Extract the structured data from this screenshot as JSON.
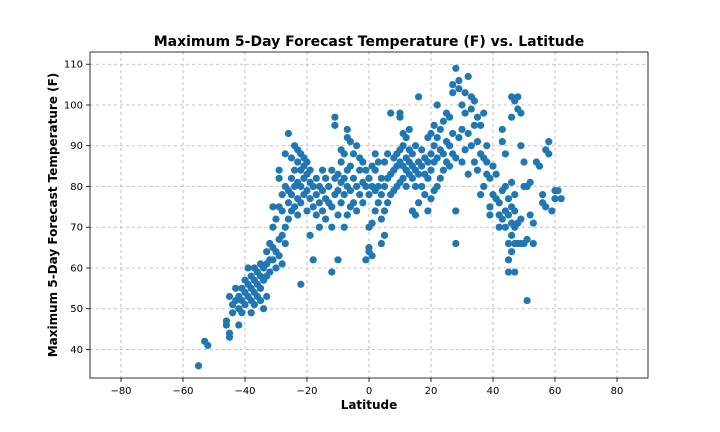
{
  "chart_data": {
    "type": "scatter",
    "title": "Maximum 5-Day Forecast Temperature (F) vs. Latitude",
    "xlabel": "Latitude",
    "ylabel": "Maximum 5-Day Forecast Temperature (F)",
    "xlim": [
      -90,
      90
    ],
    "ylim": [
      33,
      113
    ],
    "xticks": [
      -80,
      -60,
      -40,
      -20,
      0,
      20,
      40,
      60,
      80
    ],
    "yticks": [
      40,
      50,
      60,
      70,
      80,
      90,
      100,
      110
    ],
    "grid": true,
    "marker_color": "#1f77b4",
    "points": [
      [
        -55,
        36
      ],
      [
        -53,
        42
      ],
      [
        -52,
        41
      ],
      [
        -46,
        47
      ],
      [
        -46,
        46
      ],
      [
        -45,
        43
      ],
      [
        -45,
        44
      ],
      [
        -45,
        53
      ],
      [
        -44,
        49
      ],
      [
        -44,
        51
      ],
      [
        -43,
        55
      ],
      [
        -43,
        52
      ],
      [
        -42,
        53
      ],
      [
        -42,
        50
      ],
      [
        -42,
        46
      ],
      [
        -41,
        55
      ],
      [
        -41,
        52
      ],
      [
        -41,
        49
      ],
      [
        -40,
        54
      ],
      [
        -40,
        51
      ],
      [
        -40,
        57
      ],
      [
        -39,
        60
      ],
      [
        -39,
        56
      ],
      [
        -39,
        53
      ],
      [
        -38,
        58
      ],
      [
        -38,
        55
      ],
      [
        -38,
        52
      ],
      [
        -38,
        49
      ],
      [
        -37,
        60
      ],
      [
        -37,
        57
      ],
      [
        -37,
        54
      ],
      [
        -37,
        51
      ],
      [
        -36,
        59
      ],
      [
        -36,
        56
      ],
      [
        -36,
        53
      ],
      [
        -35,
        61
      ],
      [
        -35,
        58
      ],
      [
        -35,
        55
      ],
      [
        -35,
        52
      ],
      [
        -34,
        60
      ],
      [
        -34,
        57
      ],
      [
        -34,
        50
      ],
      [
        -33,
        64
      ],
      [
        -33,
        61
      ],
      [
        -33,
        58
      ],
      [
        -33,
        53
      ],
      [
        -32,
        66
      ],
      [
        -32,
        62
      ],
      [
        -32,
        59
      ],
      [
        -31,
        65
      ],
      [
        -31,
        62
      ],
      [
        -31,
        75
      ],
      [
        -31,
        70
      ],
      [
        -30,
        64
      ],
      [
        -30,
        60
      ],
      [
        -30,
        72
      ],
      [
        -29,
        67
      ],
      [
        -29,
        63
      ],
      [
        -29,
        75
      ],
      [
        -29,
        82
      ],
      [
        -29,
        84
      ],
      [
        -28,
        68
      ],
      [
        -28,
        61
      ],
      [
        -28,
        74
      ],
      [
        -28,
        78
      ],
      [
        -27,
        70
      ],
      [
        -27,
        66
      ],
      [
        -27,
        80
      ],
      [
        -27,
        88
      ],
      [
        -26,
        72
      ],
      [
        -26,
        76
      ],
      [
        -26,
        79
      ],
      [
        -26,
        93
      ],
      [
        -25,
        74
      ],
      [
        -25,
        78
      ],
      [
        -25,
        82
      ],
      [
        -25,
        87
      ],
      [
        -24,
        75
      ],
      [
        -24,
        80
      ],
      [
        -24,
        84
      ],
      [
        -24,
        90
      ],
      [
        -23,
        73
      ],
      [
        -23,
        77
      ],
      [
        -23,
        81
      ],
      [
        -23,
        86
      ],
      [
        -23,
        89
      ],
      [
        -22,
        56
      ],
      [
        -22,
        76
      ],
      [
        -22,
        80
      ],
      [
        -22,
        84
      ],
      [
        -22,
        88
      ],
      [
        -21,
        78
      ],
      [
        -21,
        82
      ],
      [
        -21,
        85
      ],
      [
        -21,
        87
      ],
      [
        -20,
        74
      ],
      [
        -20,
        79
      ],
      [
        -20,
        83
      ],
      [
        -20,
        86
      ],
      [
        -19,
        68
      ],
      [
        -19,
        77
      ],
      [
        -19,
        81
      ],
      [
        -19,
        84
      ],
      [
        -18,
        62
      ],
      [
        -18,
        75
      ],
      [
        -18,
        80
      ],
      [
        -17,
        73
      ],
      [
        -17,
        78
      ],
      [
        -17,
        82
      ],
      [
        -16,
        70
      ],
      [
        -16,
        76
      ],
      [
        -16,
        80
      ],
      [
        -15,
        74
      ],
      [
        -15,
        79
      ],
      [
        -15,
        84
      ],
      [
        -14,
        72
      ],
      [
        -14,
        77
      ],
      [
        -14,
        82
      ],
      [
        -13,
        76
      ],
      [
        -13,
        80
      ],
      [
        -12,
        59
      ],
      [
        -12,
        70
      ],
      [
        -12,
        75
      ],
      [
        -12,
        84
      ],
      [
        -11,
        97
      ],
      [
        -11,
        95
      ],
      [
        -11,
        78
      ],
      [
        -11,
        82
      ],
      [
        -10,
        62
      ],
      [
        -10,
        73
      ],
      [
        -10,
        79
      ],
      [
        -10,
        83
      ],
      [
        -9,
        76
      ],
      [
        -9,
        81
      ],
      [
        -9,
        86
      ],
      [
        -9,
        89
      ],
      [
        -8,
        70
      ],
      [
        -8,
        78
      ],
      [
        -8,
        82
      ],
      [
        -8,
        88
      ],
      [
        -7,
        73
      ],
      [
        -7,
        80
      ],
      [
        -7,
        84
      ],
      [
        -7,
        92
      ],
      [
        -7,
        94
      ],
      [
        -6,
        75
      ],
      [
        -6,
        79
      ],
      [
        -6,
        85
      ],
      [
        -6,
        91
      ],
      [
        -5,
        76
      ],
      [
        -5,
        82
      ],
      [
        -5,
        88
      ],
      [
        -4,
        74
      ],
      [
        -4,
        80
      ],
      [
        -4,
        90
      ],
      [
        -3,
        78
      ],
      [
        -3,
        84
      ],
      [
        -3,
        87
      ],
      [
        -2,
        76
      ],
      [
        -2,
        81
      ],
      [
        -2,
        86
      ],
      [
        -1,
        62
      ],
      [
        -1,
        80
      ],
      [
        -1,
        84
      ],
      [
        0,
        65
      ],
      [
        0,
        64
      ],
      [
        0,
        70
      ],
      [
        0,
        78
      ],
      [
        0,
        82
      ],
      [
        1,
        63
      ],
      [
        1,
        71
      ],
      [
        1,
        80
      ],
      [
        1,
        85
      ],
      [
        2,
        74
      ],
      [
        2,
        79
      ],
      [
        2,
        84
      ],
      [
        2,
        88
      ],
      [
        3,
        76
      ],
      [
        3,
        80
      ],
      [
        3,
        86
      ],
      [
        4,
        66
      ],
      [
        4,
        72
      ],
      [
        4,
        78
      ],
      [
        4,
        82
      ],
      [
        5,
        68
      ],
      [
        5,
        74
      ],
      [
        5,
        80
      ],
      [
        5,
        86
      ],
      [
        6,
        76
      ],
      [
        6,
        82
      ],
      [
        6,
        88
      ],
      [
        7,
        78
      ],
      [
        7,
        83
      ],
      [
        7,
        98
      ],
      [
        8,
        79
      ],
      [
        8,
        84
      ],
      [
        8,
        87
      ],
      [
        9,
        80
      ],
      [
        9,
        85
      ],
      [
        9,
        88
      ],
      [
        10,
        81
      ],
      [
        10,
        86
      ],
      [
        10,
        89
      ],
      [
        10,
        97
      ],
      [
        10,
        98
      ],
      [
        11,
        82
      ],
      [
        11,
        85
      ],
      [
        11,
        90
      ],
      [
        11,
        93
      ],
      [
        12,
        80
      ],
      [
        12,
        84
      ],
      [
        12,
        87
      ],
      [
        12,
        92
      ],
      [
        13,
        83
      ],
      [
        13,
        86
      ],
      [
        13,
        89
      ],
      [
        13,
        94
      ],
      [
        14,
        74
      ],
      [
        14,
        82
      ],
      [
        14,
        85
      ],
      [
        14,
        88
      ],
      [
        15,
        73
      ],
      [
        15,
        80
      ],
      [
        15,
        84
      ],
      [
        15,
        90
      ],
      [
        16,
        76
      ],
      [
        16,
        83
      ],
      [
        16,
        86
      ],
      [
        16,
        102
      ],
      [
        17,
        80
      ],
      [
        17,
        85
      ],
      [
        17,
        89
      ],
      [
        18,
        78
      ],
      [
        18,
        83
      ],
      [
        18,
        87
      ],
      [
        19,
        74
      ],
      [
        19,
        82
      ],
      [
        19,
        86
      ],
      [
        19,
        92
      ],
      [
        20,
        77
      ],
      [
        20,
        84
      ],
      [
        20,
        88
      ],
      [
        20,
        93
      ],
      [
        21,
        79
      ],
      [
        21,
        86
      ],
      [
        21,
        90
      ],
      [
        21,
        95
      ],
      [
        22,
        80
      ],
      [
        22,
        87
      ],
      [
        22,
        92
      ],
      [
        22,
        100
      ],
      [
        23,
        82
      ],
      [
        23,
        89
      ],
      [
        23,
        94
      ],
      [
        24,
        84
      ],
      [
        24,
        88
      ],
      [
        24,
        96
      ],
      [
        25,
        86
      ],
      [
        25,
        91
      ],
      [
        25,
        98
      ],
      [
        26,
        85
      ],
      [
        26,
        90
      ],
      [
        26,
        97
      ],
      [
        27,
        88
      ],
      [
        27,
        93
      ],
      [
        27,
        103
      ],
      [
        27,
        105
      ],
      [
        28,
        66
      ],
      [
        28,
        74
      ],
      [
        28,
        87
      ],
      [
        28,
        109
      ],
      [
        29,
        92
      ],
      [
        29,
        104
      ],
      [
        29,
        106
      ],
      [
        30,
        86
      ],
      [
        30,
        94
      ],
      [
        30,
        100
      ],
      [
        31,
        89
      ],
      [
        31,
        98
      ],
      [
        31,
        103
      ],
      [
        32,
        83
      ],
      [
        32,
        93
      ],
      [
        32,
        107
      ],
      [
        33,
        90
      ],
      [
        33,
        99
      ],
      [
        33,
        102
      ],
      [
        34,
        86
      ],
      [
        34,
        95
      ],
      [
        34,
        101
      ],
      [
        35,
        84
      ],
      [
        35,
        91
      ],
      [
        35,
        97
      ],
      [
        36,
        78
      ],
      [
        36,
        88
      ],
      [
        36,
        95
      ],
      [
        37,
        80
      ],
      [
        37,
        87
      ],
      [
        37,
        98
      ],
      [
        38,
        83
      ],
      [
        38,
        86
      ],
      [
        38,
        90
      ],
      [
        39,
        73
      ],
      [
        39,
        75
      ],
      [
        39,
        82
      ],
      [
        40,
        78
      ],
      [
        40,
        85
      ],
      [
        41,
        77
      ],
      [
        41,
        83
      ],
      [
        42,
        70
      ],
      [
        42,
        73
      ],
      [
        42,
        76
      ],
      [
        43,
        72
      ],
      [
        43,
        79
      ],
      [
        43,
        91
      ],
      [
        43,
        94
      ],
      [
        44,
        70
      ],
      [
        44,
        74
      ],
      [
        44,
        80
      ],
      [
        44,
        88
      ],
      [
        45,
        59
      ],
      [
        45,
        62
      ],
      [
        45,
        66
      ],
      [
        45,
        73
      ],
      [
        45,
        77
      ],
      [
        46,
        64
      ],
      [
        46,
        68
      ],
      [
        46,
        71
      ],
      [
        46,
        75
      ],
      [
        46,
        81
      ],
      [
        46,
        97
      ],
      [
        46,
        102
      ],
      [
        47,
        59
      ],
      [
        47,
        66
      ],
      [
        47,
        70
      ],
      [
        47,
        74
      ],
      [
        47,
        78
      ],
      [
        47,
        101
      ],
      [
        48,
        66
      ],
      [
        48,
        71
      ],
      [
        48,
        99
      ],
      [
        48,
        102
      ],
      [
        49,
        66
      ],
      [
        49,
        72
      ],
      [
        49,
        90
      ],
      [
        49,
        98
      ],
      [
        50,
        66
      ],
      [
        50,
        80
      ],
      [
        50,
        86
      ],
      [
        51,
        52
      ],
      [
        51,
        67
      ],
      [
        51,
        80
      ],
      [
        52,
        73
      ],
      [
        52,
        81
      ],
      [
        53,
        66
      ],
      [
        53,
        71
      ],
      [
        54,
        86
      ],
      [
        55,
        85
      ],
      [
        56,
        76
      ],
      [
        56,
        78
      ],
      [
        57,
        75
      ],
      [
        57,
        89
      ],
      [
        58,
        88
      ],
      [
        58,
        91
      ],
      [
        59,
        74
      ],
      [
        60,
        77
      ],
      [
        60,
        79
      ],
      [
        61,
        79
      ],
      [
        62,
        77
      ]
    ]
  }
}
